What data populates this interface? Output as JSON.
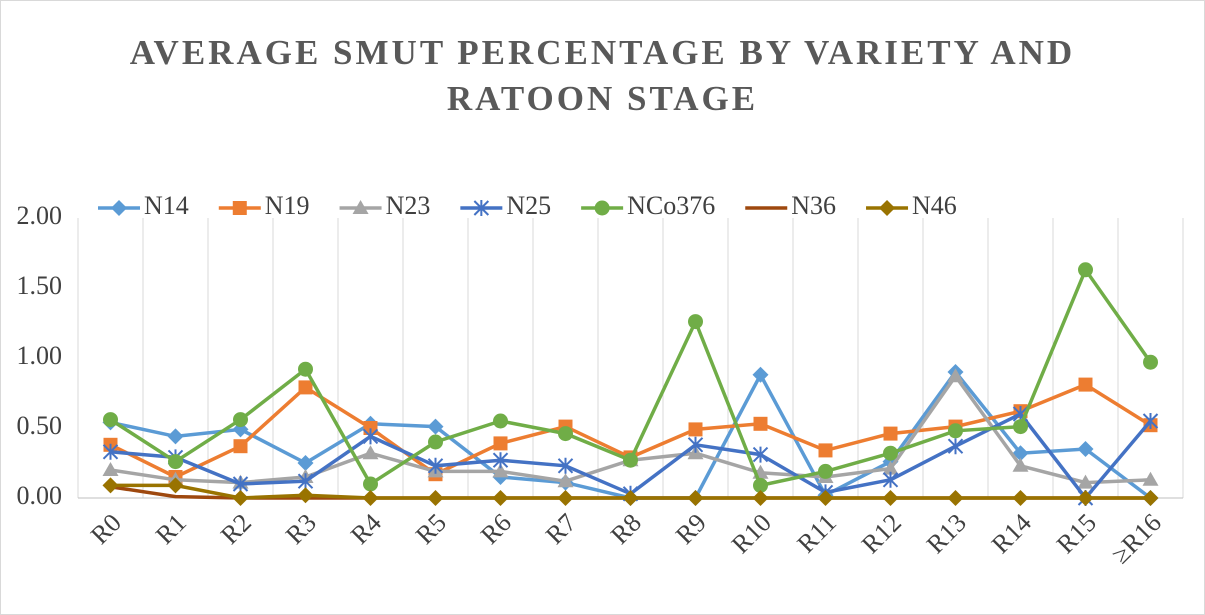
{
  "chart_data": {
    "type": "line",
    "title": "AVERAGE SMUT PERCENTAGE BY VARIETY AND RATOON STAGE",
    "categories": [
      "R0",
      "R1",
      "R2",
      "R3",
      "R4",
      "R5",
      "R6",
      "R7",
      "R8",
      "R9",
      "R10",
      "R11",
      "R12",
      "R13",
      "R14",
      "R15",
      "≥R16"
    ],
    "ylim": [
      0,
      2
    ],
    "yticks": [
      {
        "value": 0,
        "label": "0.00"
      },
      {
        "value": 0.5,
        "label": "0.50"
      },
      {
        "value": 1,
        "label": "1.00"
      },
      {
        "value": 1.5,
        "label": "1.50"
      },
      {
        "value": 2,
        "label": "2.00"
      }
    ],
    "grid": true,
    "legend": "top",
    "series": [
      {
        "name": "N14",
        "color": "#5b9bd5",
        "marker": "diamond",
        "values": [
          0.54,
          0.44,
          0.49,
          0.25,
          0.53,
          0.51,
          0.15,
          0.11,
          0,
          0,
          0.88,
          0.02,
          0.26,
          0.9,
          0.32,
          0.35,
          0
        ]
      },
      {
        "name": "N19",
        "color": "#ed7d31",
        "marker": "square",
        "values": [
          0.38,
          0.15,
          0.37,
          0.79,
          0.5,
          0.17,
          0.39,
          0.51,
          0.29,
          0.49,
          0.53,
          0.34,
          0.46,
          0.51,
          0.62,
          0.81,
          0.52
        ]
      },
      {
        "name": "N23",
        "color": "#a5a5a5",
        "marker": "triangle",
        "values": [
          0.2,
          0.13,
          0.11,
          0.15,
          0.32,
          0.19,
          0.19,
          0.12,
          0.27,
          0.32,
          0.18,
          0.15,
          0.21,
          0.87,
          0.23,
          0.11,
          0.13
        ]
      },
      {
        "name": "N25",
        "color": "#4472c4",
        "marker": "star",
        "values": [
          0.33,
          0.29,
          0.1,
          0.12,
          0.44,
          0.23,
          0.27,
          0.23,
          0.03,
          0.38,
          0.31,
          0.04,
          0.13,
          0.37,
          0.6,
          0,
          0.55
        ]
      },
      {
        "name": "NCo376",
        "color": "#70ad47",
        "marker": "circle",
        "values": [
          0.56,
          0.26,
          0.56,
          0.92,
          0.1,
          0.4,
          0.55,
          0.46,
          0.27,
          1.26,
          0.09,
          0.19,
          0.32,
          0.48,
          0.51,
          1.63,
          0.97
        ]
      },
      {
        "name": "N36",
        "color": "#9e480e",
        "marker": "none",
        "values": [
          0.08,
          0.01,
          0,
          0,
          0,
          0,
          0,
          0,
          0,
          0,
          0,
          0,
          0,
          0,
          0,
          0,
          0
        ]
      },
      {
        "name": "N46",
        "color": "#997300",
        "marker": "diamond",
        "values": [
          0.09,
          0.09,
          0,
          0.02,
          0,
          0,
          0,
          0,
          0,
          0,
          0,
          0,
          0,
          0,
          0,
          0,
          0
        ]
      }
    ]
  }
}
